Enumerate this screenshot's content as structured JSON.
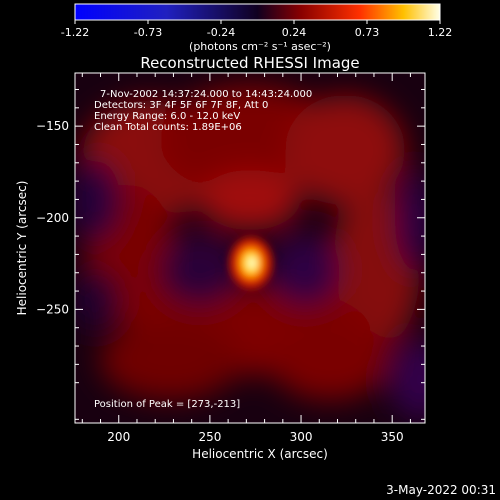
{
  "colorbar": {
    "tick_labels": [
      "-1.22",
      "-0.73",
      "-0.24",
      "0.24",
      "0.73",
      "1.22"
    ],
    "unit_label": "(photons cm⁻² s⁻¹ asec⁻²)",
    "range": [
      -1.22,
      1.22
    ]
  },
  "chart_data": {
    "type": "heatmap",
    "title": "Reconstructed RHESSI Image",
    "xlabel": "Heliocentric X (arcsec)",
    "ylabel": "Heliocentric Y (arcsec)",
    "xlim": [
      176,
      368
    ],
    "ylim": [
      -312,
      -121
    ],
    "x_ticks": [
      200,
      250,
      300,
      350
    ],
    "y_ticks": [
      -150,
      -200,
      -250
    ],
    "x_tick_labels": [
      "200",
      "250",
      "300",
      "350"
    ],
    "y_tick_labels": [
      "−150",
      "−200",
      "−250"
    ],
    "annotations": [
      "7-Nov-2002 14:37:24.000 to 14:43:24.000",
      "Detectors: 3F 4F 5F 6F 7F 8F, Att 0",
      "Energy Range: 6.0 - 12.0 keV",
      "Clean     Total counts: 1.89E+06"
    ],
    "peak_label": "Position of Peak = [273,-213]",
    "peak": {
      "x": 273,
      "y": -213
    }
  },
  "timestamp": "3-May-2022 00:31"
}
